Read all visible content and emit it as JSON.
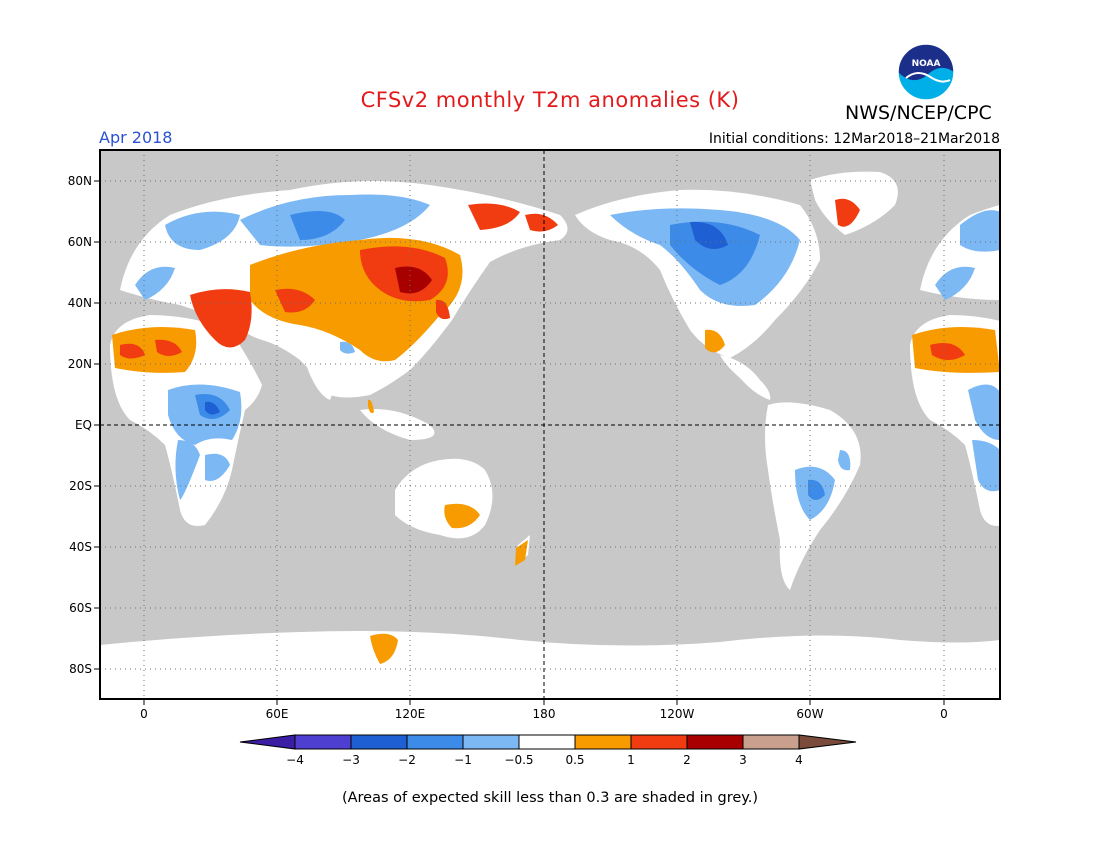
{
  "header": {
    "title": "CFSv2 monthly T2m anomalies (K)",
    "organization": "NWS/NCEP/CPC",
    "valid_month": "Apr 2018",
    "initial_conditions": "Initial conditions: 12Mar2018–21Mar2018"
  },
  "logo": {
    "text": "NOAA"
  },
  "axes": {
    "lat_labels": [
      "80N",
      "60N",
      "40N",
      "20N",
      "EQ",
      "20S",
      "40S",
      "60S",
      "80S"
    ],
    "lon_labels": [
      "0",
      "60E",
      "120E",
      "180",
      "120W",
      "60W",
      "0"
    ]
  },
  "colorbar": {
    "labels": [
      "−4",
      "−3",
      "−2",
      "−1",
      "−0.5",
      "0.5",
      "1",
      "2",
      "3",
      "4"
    ],
    "colors": [
      "#3b1ea3",
      "#4f3fd0",
      "#1f5fd4",
      "#3d8be8",
      "#7cb8f4",
      "#ffffff",
      "#f79b00",
      "#f03c10",
      "#a80000",
      "#c9a08d",
      "#7a4a3a"
    ]
  },
  "note": "(Areas of expected skill less than 0.3 are shaded in grey.)",
  "colors": {
    "background_grey": "#c8c8c8",
    "title_red": "#e31a1c",
    "month_blue": "#2b52d4"
  }
}
